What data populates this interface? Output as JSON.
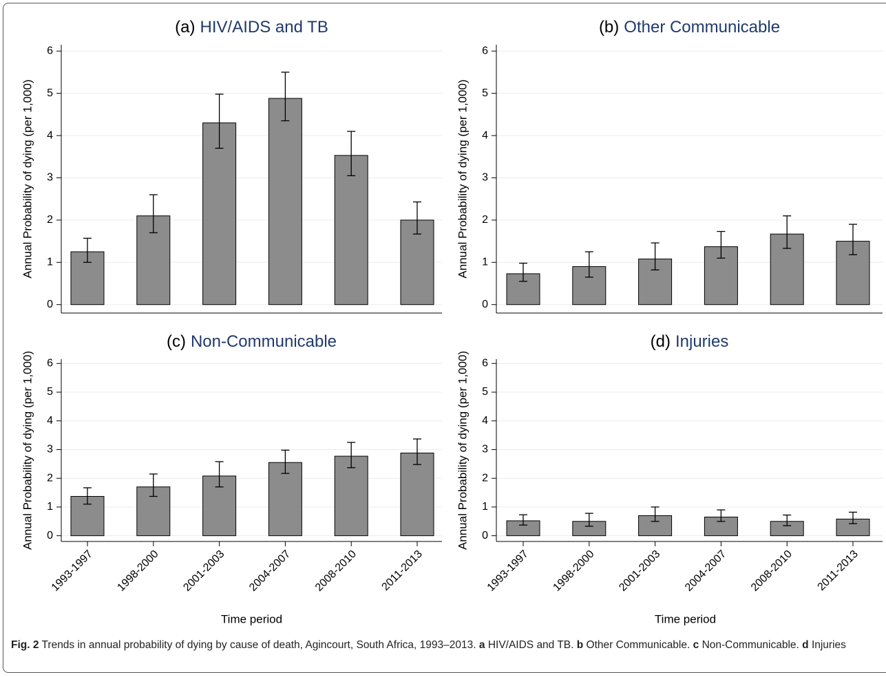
{
  "chart_data": [
    {
      "type": "bar",
      "panel": "(a)",
      "title": "HIV/AIDS and TB",
      "y_label": "Annual Probability of dying (per 1,000)",
      "values": [
        1.25,
        2.1,
        4.3,
        4.88,
        3.53,
        2.0
      ],
      "lower": [
        1.0,
        1.7,
        3.7,
        4.35,
        3.05,
        1.67
      ],
      "upper": [
        1.57,
        2.6,
        4.98,
        5.5,
        4.1,
        2.43
      ],
      "color": "#8c8c8c",
      "ylim": [
        -0.2,
        6.15
      ],
      "yticks": [
        0,
        1,
        2,
        3,
        4,
        5,
        6
      ],
      "grid": true
    },
    {
      "type": "bar",
      "panel": "(b)",
      "title": "Other Communicable",
      "y_label": "Annual Probability of dying (per 1,000)",
      "values": [
        0.73,
        0.9,
        1.08,
        1.37,
        1.67,
        1.5
      ],
      "lower": [
        0.55,
        0.65,
        0.82,
        1.1,
        1.33,
        1.18
      ],
      "upper": [
        0.98,
        1.25,
        1.46,
        1.73,
        2.1,
        1.9
      ],
      "color": "#8c8c8c",
      "ylim": [
        -0.2,
        6.15
      ],
      "yticks": [
        0,
        1,
        2,
        3,
        4,
        5,
        6
      ],
      "grid": true
    },
    {
      "type": "bar",
      "panel": "(c)",
      "title": "Non-Communicable",
      "y_label": "Annual Probability of dying (per 1,000)",
      "x_label": "Time period",
      "categories": [
        "1993-1997",
        "1998-2000",
        "2001-2003",
        "2004-2007",
        "2008-2010",
        "2011-2013"
      ],
      "values": [
        1.37,
        1.7,
        2.08,
        2.55,
        2.77,
        2.88
      ],
      "lower": [
        1.1,
        1.37,
        1.7,
        2.17,
        2.37,
        2.48
      ],
      "upper": [
        1.67,
        2.15,
        2.58,
        2.98,
        3.25,
        3.37
      ],
      "color": "#8c8c8c",
      "ylim": [
        -0.2,
        6.15
      ],
      "yticks": [
        0,
        1,
        2,
        3,
        4,
        5,
        6
      ],
      "grid": true
    },
    {
      "type": "bar",
      "panel": "(d)",
      "title": "Injuries",
      "y_label": "Annual Probability of dying (per 1,000)",
      "x_label": "Time period",
      "categories": [
        "1993-1997",
        "1998-2000",
        "2001-2003",
        "2004-2007",
        "2008-2010",
        "2011-2013"
      ],
      "values": [
        0.52,
        0.5,
        0.7,
        0.65,
        0.5,
        0.58
      ],
      "lower": [
        0.37,
        0.33,
        0.5,
        0.5,
        0.35,
        0.42
      ],
      "upper": [
        0.73,
        0.78,
        1.0,
        0.9,
        0.72,
        0.82
      ],
      "color": "#8c8c8c",
      "ylim": [
        -0.2,
        6.15
      ],
      "yticks": [
        0,
        1,
        2,
        3,
        4,
        5,
        6
      ],
      "grid": true
    }
  ],
  "caption": {
    "label": "Fig. 2",
    "text": "Trends in annual probability of dying by cause of death, Agincourt, South Africa, 1993–2013.",
    "parts": [
      {
        "key": "a",
        "text": "HIV/AIDS and TB."
      },
      {
        "key": "b",
        "text": "Other Communicable."
      },
      {
        "key": "c",
        "text": "Non-Communicable."
      },
      {
        "key": "d",
        "text": "Injuries"
      }
    ]
  }
}
